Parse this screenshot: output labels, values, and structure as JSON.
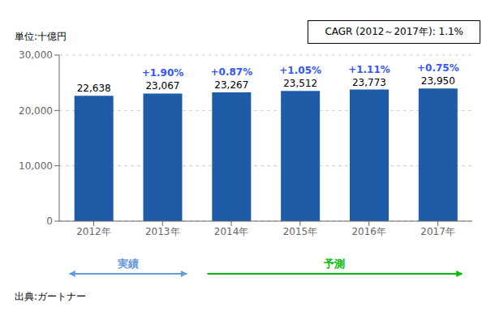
{
  "chart_data": {
    "type": "bar",
    "categories": [
      "2012年",
      "2013年",
      "2014年",
      "2015年",
      "2016年",
      "2017年"
    ],
    "values": [
      22638,
      23067,
      23267,
      23512,
      23773,
      23950
    ],
    "color": "#1F5CA8",
    "ylim": [
      0,
      30000
    ],
    "yticks": [
      0,
      {
        "value": 10000,
        "label": "10,000"
      },
      {
        "value": 20000,
        "label": "20,000"
      },
      {
        "value": 30000,
        "label": "30,000"
      }
    ],
    "grid": true,
    "data_labels": true,
    "value_labels": [
      "22,638",
      "23,067",
      "23,267",
      "23,512",
      "23,773",
      "23,950"
    ],
    "growth_labels": [
      null,
      "+1.90%",
      "+0.87%",
      "+1.05%",
      "+1.11%",
      "+0.75%"
    ],
    "growth_color": "#3355ff",
    "unit_label": "単位:十億円",
    "cagr_text": "CAGR (2012～2017年): 1.1%",
    "source_text": "出典:ガートナー",
    "periods": [
      {
        "label": "実績",
        "color": "#6699dd",
        "from": "2012年",
        "to": "2013年",
        "direction": "both"
      },
      {
        "label": "予測",
        "color": "#00bb00",
        "from": "2014年",
        "to": "2017年",
        "direction": "forward"
      }
    ]
  }
}
